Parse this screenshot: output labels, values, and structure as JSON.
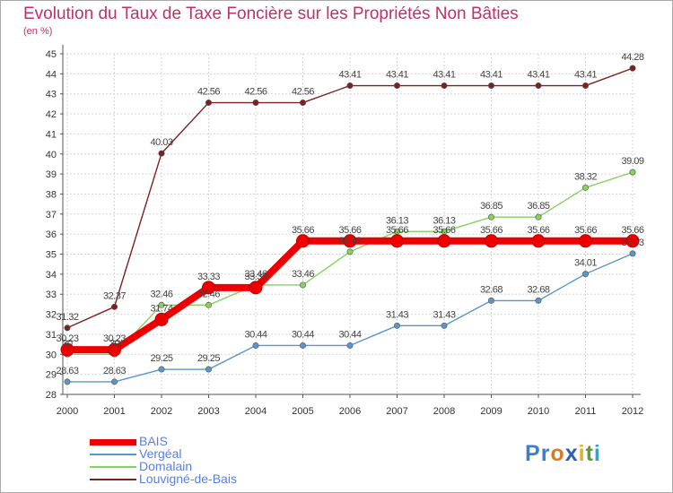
{
  "chart_data": {
    "type": "line",
    "title": "Evolution du Taux de Taxe Foncière sur les Propriétés Non Bâties",
    "ylabel": "(en %)",
    "x": [
      "2000",
      "2001",
      "2002",
      "2003",
      "2004",
      "2005",
      "2006",
      "2007",
      "2008",
      "2009",
      "2010",
      "2011",
      "2012"
    ],
    "ylim": [
      28,
      45
    ],
    "yticks": [
      "28",
      "29",
      "30",
      "31",
      "32",
      "33",
      "34",
      "35",
      "36",
      "37",
      "38",
      "39",
      "40",
      "41",
      "42",
      "43",
      "44",
      "45"
    ],
    "series": [
      {
        "name": "BAIS",
        "color": "#ee0000",
        "values": [
          30.23,
          30.23,
          31.74,
          33.33,
          33.33,
          35.66,
          35.66,
          35.66,
          35.66,
          35.66,
          35.66,
          35.66,
          35.66
        ],
        "labels": [
          "30.23",
          "30.23",
          "31.74",
          "33.33",
          "33.33",
          "35.66",
          "35.66",
          "35.66",
          "35.66",
          "35.66",
          "35.66",
          "35.66",
          "35.66"
        ]
      },
      {
        "name": "Vergéal",
        "color": "#5a96c8",
        "values": [
          28.63,
          28.63,
          29.25,
          29.25,
          30.44,
          30.44,
          30.44,
          31.43,
          31.43,
          32.68,
          32.68,
          34.01,
          35.03
        ],
        "labels": [
          "28.63",
          "28.63",
          "29.25",
          "29.25",
          "30.44",
          "30.44",
          "30.44",
          "31.43",
          "31.43",
          "32.68",
          "32.68",
          "34.01",
          "35.03"
        ]
      },
      {
        "name": "Domalain",
        "color": "#88d060",
        "values": [
          30.0,
          30.0,
          32.46,
          32.46,
          33.46,
          33.46,
          35.12,
          36.13,
          36.13,
          36.85,
          36.85,
          38.32,
          39.09
        ],
        "labels": [
          "30",
          "30",
          "32.46",
          "32.46",
          "33.46",
          "33.46",
          "35.12",
          "36.13",
          "36.13",
          "36.85",
          "36.85",
          "38.32",
          "39.09"
        ]
      },
      {
        "name": "Louvigné-de-Bais",
        "color": "#7a2222",
        "values": [
          31.32,
          32.37,
          40.03,
          42.56,
          42.56,
          42.56,
          43.41,
          43.41,
          43.41,
          43.41,
          43.41,
          43.41,
          44.28
        ],
        "labels": [
          "31.32",
          "32.37",
          "40.03",
          "42.56",
          "42.56",
          "42.56",
          "43.41",
          "43.41",
          "43.41",
          "43.41",
          "43.41",
          "43.41",
          "44.28"
        ]
      }
    ]
  },
  "logo": {
    "letters": [
      "P",
      "r",
      "o",
      "x",
      "i",
      "t",
      "i"
    ],
    "colors": [
      "#3a7fd0",
      "#3a7fd0",
      "#e07a20",
      "#2a5fb0",
      "#e8b020",
      "#5aa030",
      "#3a9fd0"
    ]
  }
}
